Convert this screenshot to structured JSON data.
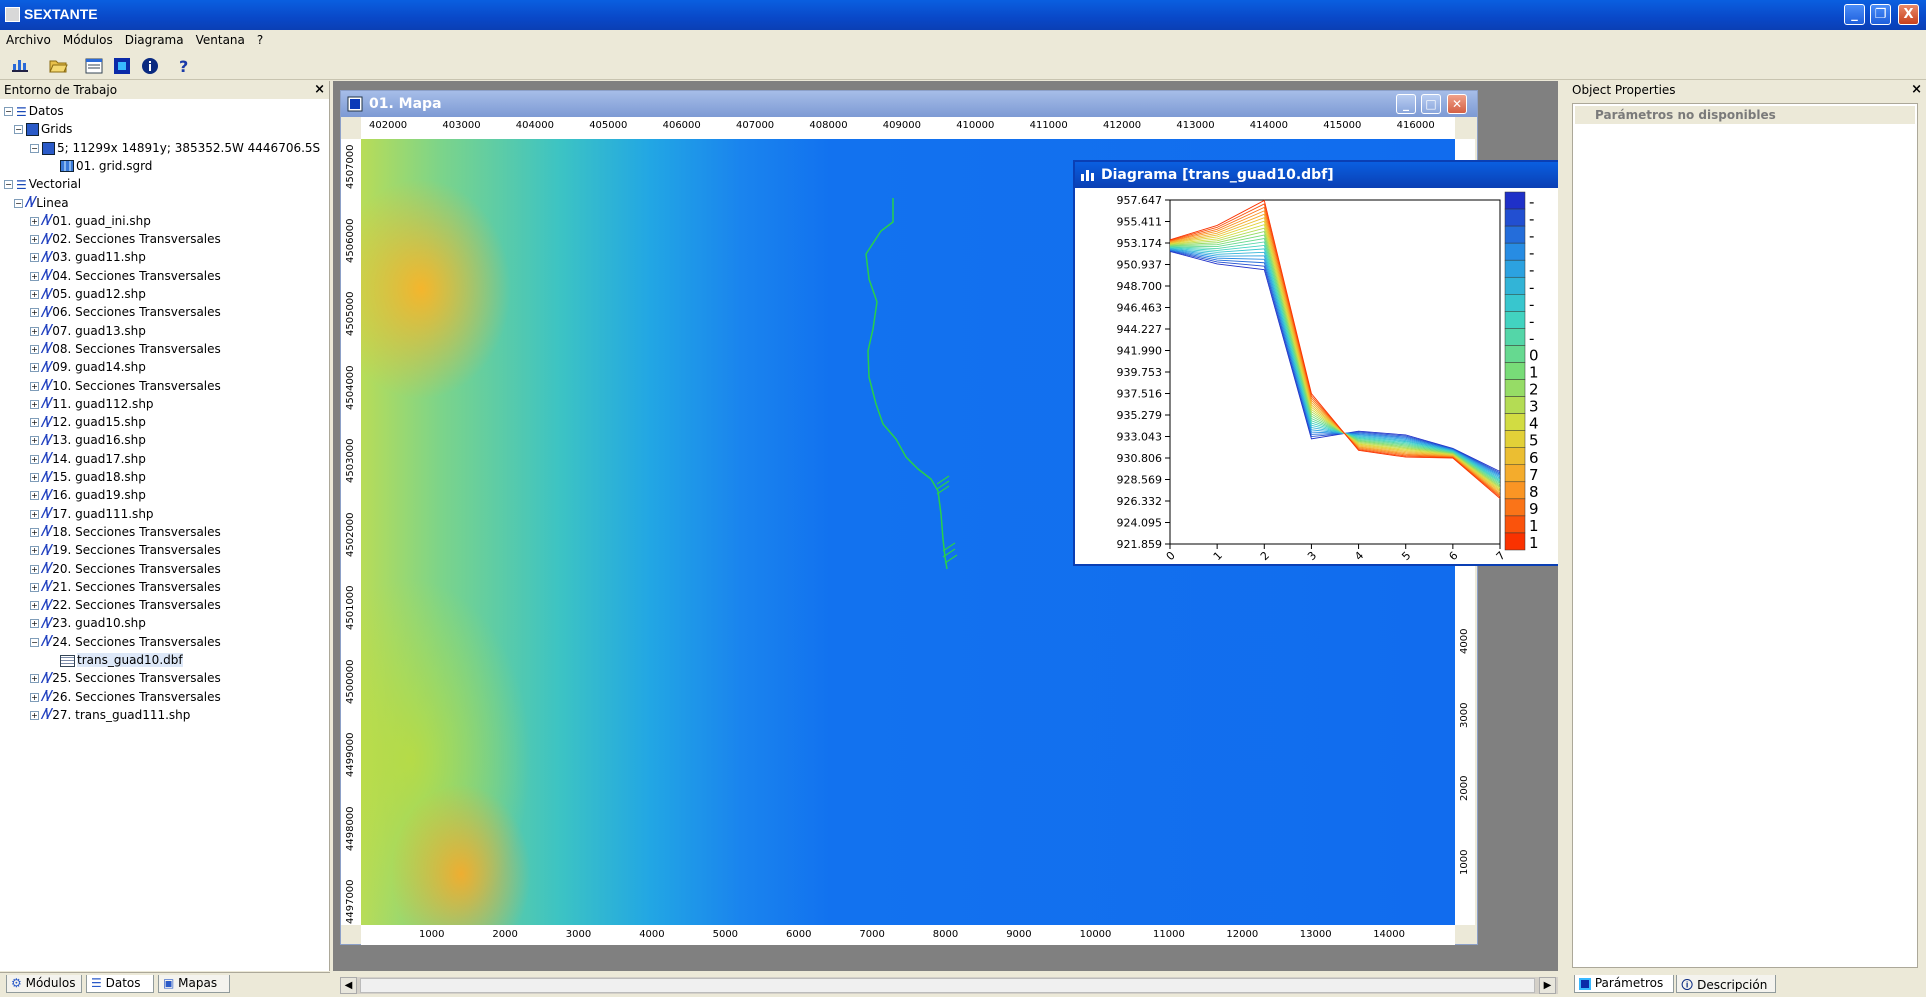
{
  "app": {
    "title": "SEXTANTE",
    "window_buttons": {
      "minimize": "_",
      "restore": "❐",
      "close": "X"
    }
  },
  "menu": [
    "Archivo",
    "Módulos",
    "Diagrama",
    "Ventana",
    "?"
  ],
  "toolbar_icons": [
    "chart-icon",
    "open-folder-icon",
    "window-icon",
    "params-icon",
    "info-icon",
    "help-icon"
  ],
  "left_panel": {
    "title": "Entorno de Trabajo",
    "close": "×",
    "tree": [
      {
        "label": "Datos",
        "level": 0,
        "icon": "datos"
      },
      {
        "label": "Grids",
        "level": 1,
        "icon": "grids"
      },
      {
        "label": "5; 11299x 14891y; 385352.5W 4446706.5S",
        "level": 2,
        "icon": "grid-group"
      },
      {
        "label": "01. grid.sgrd",
        "level": 3,
        "icon": "grid"
      },
      {
        "label": "Vectorial",
        "level": 0,
        "icon": "datos"
      },
      {
        "label": "Linea",
        "level": 1,
        "icon": "line"
      },
      {
        "label": "01. guad_ini.shp",
        "level": 2,
        "icon": "line"
      },
      {
        "label": "02. Secciones Transversales",
        "level": 2,
        "icon": "line"
      },
      {
        "label": "03. guad11.shp",
        "level": 2,
        "icon": "line"
      },
      {
        "label": "04. Secciones Transversales",
        "level": 2,
        "icon": "line"
      },
      {
        "label": "05. guad12.shp",
        "level": 2,
        "icon": "line"
      },
      {
        "label": "06. Secciones Transversales",
        "level": 2,
        "icon": "line"
      },
      {
        "label": "07. guad13.shp",
        "level": 2,
        "icon": "line"
      },
      {
        "label": "08. Secciones Transversales",
        "level": 2,
        "icon": "line"
      },
      {
        "label": "09. guad14.shp",
        "level": 2,
        "icon": "line"
      },
      {
        "label": "10. Secciones Transversales",
        "level": 2,
        "icon": "line"
      },
      {
        "label": "11. guad112.shp",
        "level": 2,
        "icon": "line"
      },
      {
        "label": "12. guad15.shp",
        "level": 2,
        "icon": "line"
      },
      {
        "label": "13. guad16.shp",
        "level": 2,
        "icon": "line"
      },
      {
        "label": "14. guad17.shp",
        "level": 2,
        "icon": "line"
      },
      {
        "label": "15. guad18.shp",
        "level": 2,
        "icon": "line"
      },
      {
        "label": "16. guad19.shp",
        "level": 2,
        "icon": "line"
      },
      {
        "label": "17. guad111.shp",
        "level": 2,
        "icon": "line"
      },
      {
        "label": "18. Secciones Transversales",
        "level": 2,
        "icon": "line"
      },
      {
        "label": "19. Secciones Transversales",
        "level": 2,
        "icon": "line"
      },
      {
        "label": "20. Secciones Transversales",
        "level": 2,
        "icon": "line"
      },
      {
        "label": "21. Secciones Transversales",
        "level": 2,
        "icon": "line"
      },
      {
        "label": "22. Secciones Transversales",
        "level": 2,
        "icon": "line"
      },
      {
        "label": "23. guad10.shp",
        "level": 2,
        "icon": "line"
      },
      {
        "label": "24. Secciones Transversales",
        "level": 2,
        "icon": "line"
      },
      {
        "label": "trans_guad10.dbf",
        "level": 3,
        "icon": "table"
      },
      {
        "label": "25. Secciones Transversales",
        "level": 2,
        "icon": "line"
      },
      {
        "label": "26. Secciones Transversales",
        "level": 2,
        "icon": "line"
      },
      {
        "label": "27. trans_guad111.shp",
        "level": 2,
        "icon": "line"
      }
    ],
    "tabs": [
      "Módulos",
      "Datos",
      "Mapas"
    ]
  },
  "map_window": {
    "title": "01. Mapa",
    "x_top_ticks": [
      "402000",
      "403000",
      "404000",
      "405000",
      "406000",
      "407000",
      "408000",
      "409000",
      "410000",
      "411000",
      "412000",
      "413000",
      "414000",
      "415000",
      "416000"
    ],
    "x_bottom_ticks": [
      "1000",
      "2000",
      "3000",
      "4000",
      "5000",
      "6000",
      "7000",
      "8000",
      "9000",
      "10000",
      "11000",
      "12000",
      "13000",
      "14000"
    ],
    "y_left_ticks": [
      "4507000",
      "4506000",
      "4505000",
      "4504000",
      "4503000",
      "4502000",
      "4501000",
      "4500000",
      "4499000",
      "4498000",
      "4497000"
    ],
    "y_right_ticks": [
      "4000",
      "3000",
      "2000",
      "1000"
    ]
  },
  "diagram_window": {
    "title": "Diagrama [trans_guad10.dbf]",
    "legend_labels": [
      "-",
      "-",
      "-",
      "-",
      "-",
      "-",
      "-",
      "-",
      "-",
      "0",
      "1",
      "2",
      "3",
      "4",
      "5",
      "6",
      "7",
      "8",
      "9",
      "1",
      "1"
    ]
  },
  "chart_data": {
    "type": "line",
    "title": "",
    "xlabel": "",
    "ylabel": "",
    "x": [
      0,
      1,
      2,
      3,
      4,
      5,
      6,
      7
    ],
    "y_ticks": [
      "957.647",
      "955.411",
      "953.174",
      "950.937",
      "948.700",
      "946.463",
      "944.227",
      "941.990",
      "939.753",
      "937.516",
      "935.279",
      "933.043",
      "930.806",
      "928.569",
      "926.332",
      "924.095",
      "921.859"
    ],
    "ylim": [
      921.859,
      957.647
    ],
    "grid": false,
    "legend": "right",
    "series_count": 21,
    "series_first": [
      952.3,
      951.0,
      950.4,
      932.8,
      933.6,
      933.2,
      931.8,
      929.4
    ],
    "series_last": [
      953.5,
      955.0,
      957.6,
      937.5,
      931.6,
      930.9,
      930.8,
      926.6
    ]
  },
  "right_panel": {
    "title": "Object Properties",
    "close": "×",
    "message": "Parámetros no disponibles",
    "tabs": [
      "Parámetros",
      "Descripción"
    ]
  },
  "colors": {
    "titlebar": "#0a5fe0",
    "legend_low": "#1f30c8",
    "legend_high": "#ff2a00"
  }
}
